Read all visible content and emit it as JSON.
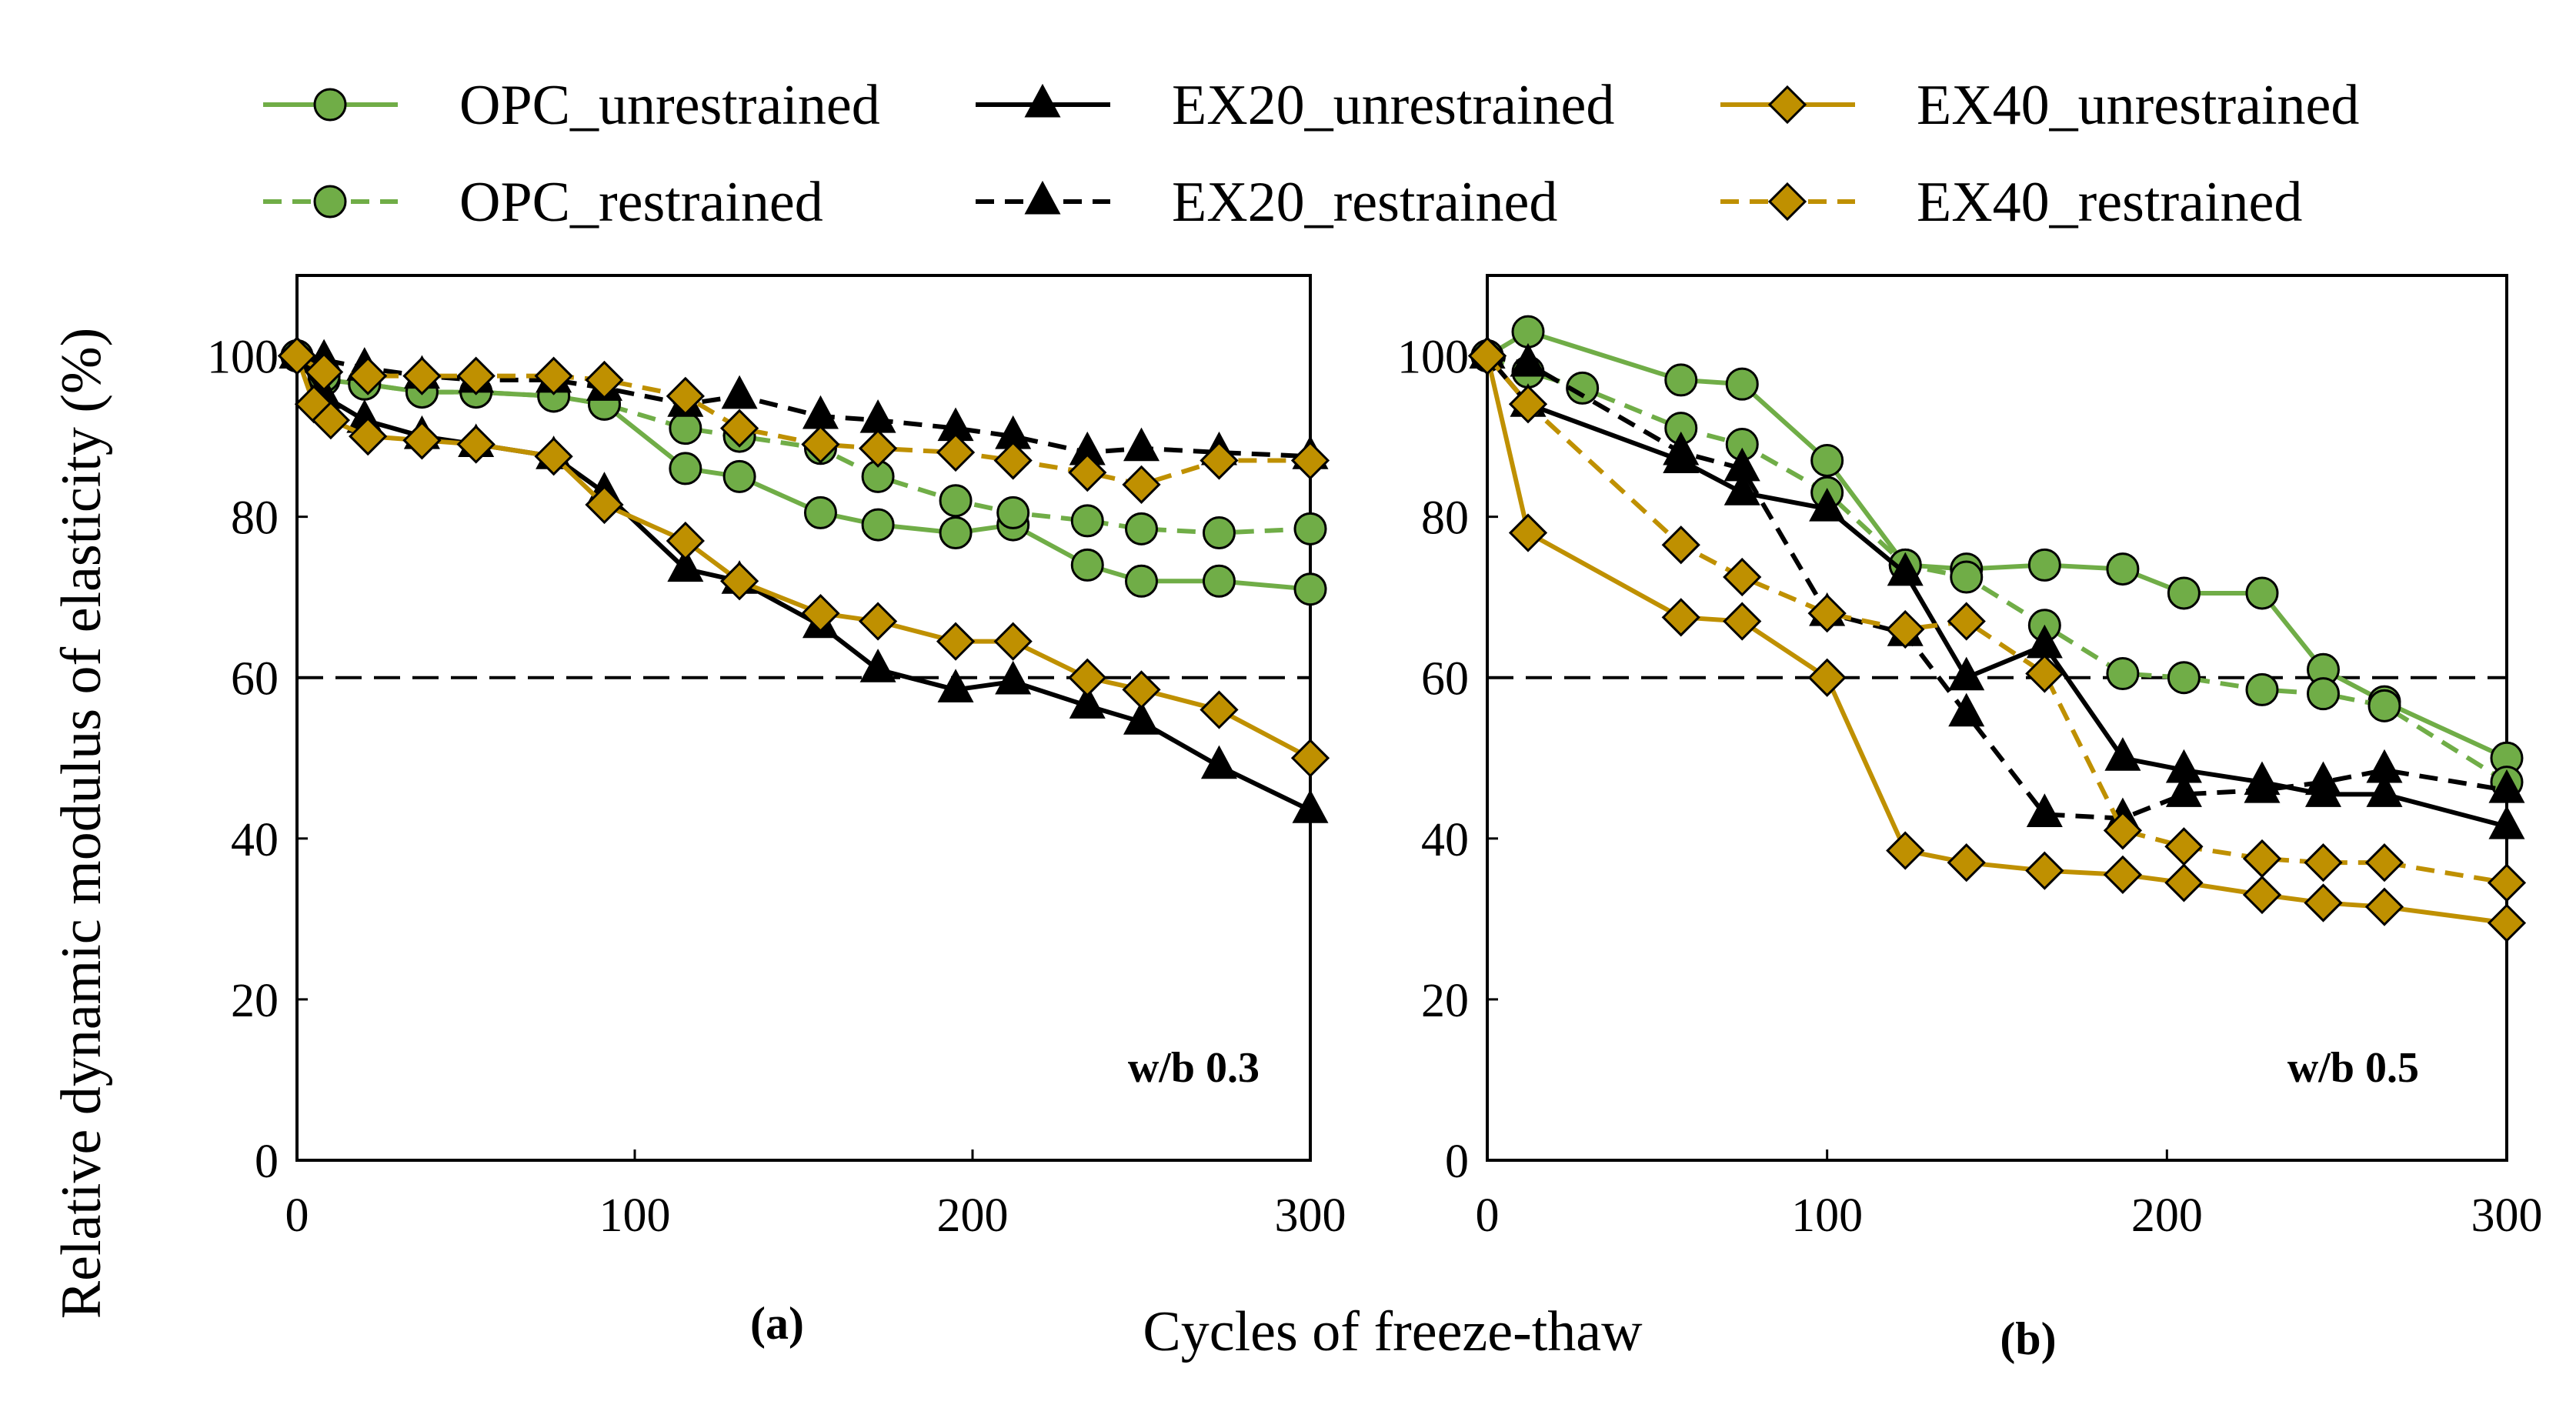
{
  "chart_data": {
    "type": "line",
    "xlabel": "Cycles of freeze-thaw",
    "ylabel": "Relative dynamic modulus of elasticity (%)",
    "xlim": [
      0,
      300
    ],
    "ylim": [
      0,
      110
    ],
    "xticks": [
      "0",
      "100",
      "200",
      "300"
    ],
    "yticks": [
      "0",
      "20",
      "40",
      "60",
      "80",
      "100"
    ],
    "threshold": 60,
    "colors": {
      "opc": "#70ad47",
      "ex20": "#000000",
      "ex40": "#bf9000"
    },
    "legend": [
      {
        "name": "OPC_unrestrained",
        "color": "#70ad47",
        "marker": "circle",
        "dash": "solid"
      },
      {
        "name": "EX20_unrestrained",
        "color": "#000000",
        "marker": "triangle",
        "dash": "solid"
      },
      {
        "name": "EX40_unrestrained",
        "color": "#bf9000",
        "marker": "diamond",
        "dash": "solid"
      },
      {
        "name": "OPC_restrained",
        "color": "#70ad47",
        "marker": "circle",
        "dash": "dashed"
      },
      {
        "name": "EX20_restrained",
        "color": "#000000",
        "marker": "triangle",
        "dash": "dashed"
      },
      {
        "name": "EX40_restrained",
        "color": "#bf9000",
        "marker": "diamond",
        "dash": "dashed"
      }
    ],
    "panels": [
      {
        "label": "(a)",
        "note": "w/b 0.3",
        "series": [
          {
            "name": "OPC_unrestrained",
            "color": "#70ad47",
            "marker": "circle",
            "dash": "solid",
            "points": [
              [
                0,
                100
              ],
              [
                8,
                97
              ],
              [
                20,
                96.5
              ],
              [
                37,
                95.5
              ],
              [
                53,
                95.5
              ],
              [
                76,
                95
              ],
              [
                91,
                94
              ],
              [
                115,
                86
              ],
              [
                131,
                85
              ],
              [
                155,
                80.5
              ],
              [
                172,
                79
              ],
              [
                195,
                78
              ],
              [
                212,
                79
              ],
              [
                234,
                74
              ],
              [
                250,
                72
              ],
              [
                273,
                72
              ],
              [
                300,
                71
              ]
            ]
          },
          {
            "name": "OPC_restrained",
            "color": "#70ad47",
            "marker": "circle",
            "dash": "dashed",
            "points": [
              [
                0,
                100
              ],
              [
                8,
                97.5
              ],
              [
                20,
                96.5
              ],
              [
                37,
                95.5
              ],
              [
                53,
                95.5
              ],
              [
                76,
                95
              ],
              [
                91,
                94
              ],
              [
                115,
                91
              ],
              [
                131,
                90
              ],
              [
                155,
                88.5
              ],
              [
                172,
                85
              ],
              [
                195,
                82
              ],
              [
                212,
                80.5
              ],
              [
                234,
                79.5
              ],
              [
                250,
                78.5
              ],
              [
                273,
                78
              ],
              [
                300,
                78.5
              ]
            ]
          },
          {
            "name": "EX20_unrestrained",
            "color": "#000000",
            "marker": "triangle",
            "dash": "solid",
            "points": [
              [
                0,
                100
              ],
              [
                8,
                95
              ],
              [
                20,
                92
              ],
              [
                37,
                90
              ],
              [
                53,
                89
              ],
              [
                76,
                87.5
              ],
              [
                91,
                83
              ],
              [
                115,
                73.5
              ],
              [
                131,
                72
              ],
              [
                155,
                66.5
              ],
              [
                172,
                61
              ],
              [
                195,
                58.5
              ],
              [
                212,
                59.5
              ],
              [
                234,
                56.5
              ],
              [
                250,
                54.5
              ],
              [
                273,
                49
              ],
              [
                300,
                43.5
              ]
            ]
          },
          {
            "name": "EX20_restrained",
            "color": "#000000",
            "marker": "triangle",
            "dash": "dashed",
            "points": [
              [
                0,
                100
              ],
              [
                8,
                99.5
              ],
              [
                20,
                98.5
              ],
              [
                37,
                97.5
              ],
              [
                53,
                97
              ],
              [
                76,
                97
              ],
              [
                91,
                96
              ],
              [
                115,
                94
              ],
              [
                131,
                95
              ],
              [
                155,
                92.5
              ],
              [
                172,
                92
              ],
              [
                195,
                91
              ],
              [
                212,
                90
              ],
              [
                234,
                88
              ],
              [
                250,
                88.5
              ],
              [
                273,
                88
              ],
              [
                300,
                87.5
              ]
            ]
          },
          {
            "name": "EX40_unrestrained",
            "color": "#bf9000",
            "marker": "diamond",
            "dash": "solid",
            "points": [
              [
                0,
                100
              ],
              [
                5,
                94
              ],
              [
                10,
                92
              ],
              [
                21,
                90
              ],
              [
                37,
                89.5
              ],
              [
                53,
                89
              ],
              [
                76,
                87.5
              ],
              [
                91,
                81.5
              ],
              [
                115,
                77
              ],
              [
                131,
                72
              ],
              [
                155,
                68
              ],
              [
                172,
                67
              ],
              [
                195,
                64.5
              ],
              [
                212,
                64.5
              ],
              [
                234,
                60
              ],
              [
                250,
                58.5
              ],
              [
                273,
                56
              ],
              [
                300,
                50
              ]
            ]
          },
          {
            "name": "EX40_restrained",
            "color": "#bf9000",
            "marker": "diamond",
            "dash": "dashed",
            "points": [
              [
                0,
                100
              ],
              [
                8,
                98
              ],
              [
                21,
                97.5
              ],
              [
                37,
                97.5
              ],
              [
                53,
                97.5
              ],
              [
                76,
                97.5
              ],
              [
                91,
                97
              ],
              [
                115,
                95
              ],
              [
                131,
                91
              ],
              [
                155,
                89
              ],
              [
                172,
                88.5
              ],
              [
                195,
                88
              ],
              [
                212,
                87
              ],
              [
                234,
                85.5
              ],
              [
                250,
                84
              ],
              [
                273,
                87
              ],
              [
                300,
                87
              ]
            ]
          }
        ]
      },
      {
        "label": "(b)",
        "note": "w/b 0.5",
        "series": [
          {
            "name": "OPC_unrestrained",
            "color": "#70ad47",
            "marker": "circle",
            "dash": "solid",
            "points": [
              [
                0,
                100
              ],
              [
                12,
                103
              ],
              [
                57,
                97
              ],
              [
                75,
                96.5
              ],
              [
                100,
                87
              ],
              [
                123,
                74
              ],
              [
                141,
                73.5
              ],
              [
                164,
                74
              ],
              [
                187,
                73.5
              ],
              [
                205,
                70.5
              ],
              [
                228,
                70.5
              ],
              [
                246,
                61
              ],
              [
                264,
                57
              ],
              [
                300,
                50
              ]
            ]
          },
          {
            "name": "OPC_restrained",
            "color": "#70ad47",
            "marker": "circle",
            "dash": "dashed",
            "points": [
              [
                0,
                100
              ],
              [
                12,
                98
              ],
              [
                28,
                96
              ],
              [
                57,
                91
              ],
              [
                75,
                89
              ],
              [
                100,
                83
              ],
              [
                123,
                74
              ],
              [
                141,
                72.5
              ],
              [
                164,
                66.5
              ],
              [
                187,
                60.5
              ],
              [
                205,
                60
              ],
              [
                228,
                58.5
              ],
              [
                246,
                58
              ],
              [
                264,
                56.5
              ],
              [
                300,
                47
              ]
            ]
          },
          {
            "name": "EX20_unrestrained",
            "color": "#000000",
            "marker": "triangle",
            "dash": "solid",
            "points": [
              [
                0,
                100
              ],
              [
                12,
                94
              ],
              [
                57,
                87
              ],
              [
                75,
                83
              ],
              [
                100,
                81
              ],
              [
                123,
                73
              ],
              [
                141,
                60
              ],
              [
                164,
                64
              ],
              [
                187,
                50
              ],
              [
                205,
                48.5
              ],
              [
                228,
                47
              ],
              [
                246,
                45.5
              ],
              [
                264,
                45.5
              ],
              [
                300,
                41.5
              ]
            ]
          },
          {
            "name": "EX20_restrained",
            "color": "#000000",
            "marker": "triangle",
            "dash": "dashed",
            "points": [
              [
                0,
                100
              ],
              [
                12,
                99
              ],
              [
                57,
                88
              ],
              [
                75,
                86
              ],
              [
                100,
                68
              ],
              [
                123,
                65.5
              ],
              [
                141,
                55.5
              ],
              [
                164,
                43
              ],
              [
                187,
                42.5
              ],
              [
                205,
                45.5
              ],
              [
                228,
                46
              ],
              [
                246,
                47
              ],
              [
                264,
                48.5
              ],
              [
                300,
                46
              ]
            ]
          },
          {
            "name": "EX40_unrestrained",
            "color": "#bf9000",
            "marker": "diamond",
            "dash": "solid",
            "points": [
              [
                0,
                100
              ],
              [
                12,
                78
              ],
              [
                57,
                67.5
              ],
              [
                75,
                67
              ],
              [
                100,
                60
              ],
              [
                123,
                38.5
              ],
              [
                141,
                37
              ],
              [
                164,
                36
              ],
              [
                187,
                35.5
              ],
              [
                205,
                34.5
              ],
              [
                228,
                33
              ],
              [
                246,
                32
              ],
              [
                264,
                31.5
              ],
              [
                300,
                29.5
              ]
            ]
          },
          {
            "name": "EX40_restrained",
            "color": "#bf9000",
            "marker": "diamond",
            "dash": "dashed",
            "points": [
              [
                0,
                100
              ],
              [
                12,
                94
              ],
              [
                57,
                76.5
              ],
              [
                75,
                72.5
              ],
              [
                100,
                68
              ],
              [
                123,
                66
              ],
              [
                141,
                67
              ],
              [
                164,
                60.5
              ],
              [
                187,
                41
              ],
              [
                205,
                39
              ],
              [
                228,
                37.5
              ],
              [
                246,
                37
              ],
              [
                264,
                37
              ],
              [
                300,
                34.5
              ]
            ]
          }
        ]
      }
    ]
  }
}
